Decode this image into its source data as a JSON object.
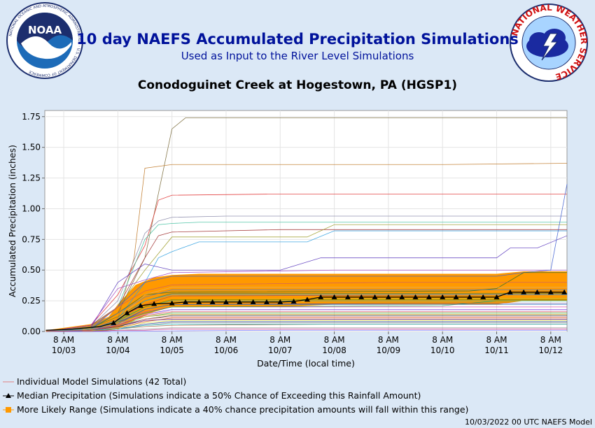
{
  "header": {
    "title": "10 day NAEFS Accumulated Precipitation Simulations",
    "subtitle": "Used as Input to the River Level Simulations",
    "location": "Conodoguinet Creek at Hogestown, PA (HGSP1)"
  },
  "logos": {
    "noaa": "NOAA",
    "noaa_ring": "NATIONAL OCEANIC AND ATMOSPHERIC ADMINISTRATION · U.S. DEPARTMENT OF COMMERCE",
    "nws_ring": "NATIONAL WEATHER SERVICE"
  },
  "legend": {
    "individual": "Individual Model Simulations (42 Total)",
    "median": "Median Precipitation (Simulations indicate a 50% Chance of Exceeding this Rainfall Amount)",
    "range": "More Likely Range (Simulations indicate a 40% chance precipitation amounts will fall within this range)"
  },
  "footer": "10/03/2022 00 UTC NAEFS Model",
  "colors": {
    "title": "#00129b",
    "range_fill": "#ff9900",
    "median": "#000000",
    "background": "#dbe8f6"
  },
  "chart_data": {
    "type": "line",
    "xlabel": "Date/Time (local time)",
    "ylabel": "Accumulated Precipitation (inches)",
    "ylim": [
      0,
      1.8
    ],
    "yticks": [
      "0.00",
      "0.25",
      "0.50",
      "0.75",
      "1.00",
      "1.25",
      "1.50",
      "1.75"
    ],
    "xlim": [
      -0.35,
      9.3
    ],
    "xticks": [
      {
        "x": 0,
        "line1": "8 AM",
        "line2": "10/03"
      },
      {
        "x": 1,
        "line1": "8 AM",
        "line2": "10/04"
      },
      {
        "x": 2,
        "line1": "8 AM",
        "line2": "10/05"
      },
      {
        "x": 3,
        "line1": "8 AM",
        "line2": "10/06"
      },
      {
        "x": 4,
        "line1": "8 AM",
        "line2": "10/07"
      },
      {
        "x": 5,
        "line1": "8 AM",
        "line2": "10/08"
      },
      {
        "x": 6,
        "line1": "8 AM",
        "line2": "10/09"
      },
      {
        "x": 7,
        "line1": "8 AM",
        "line2": "10/10"
      },
      {
        "x": 8,
        "line1": "8 AM",
        "line2": "10/11"
      },
      {
        "x": 9,
        "line1": "8 AM",
        "line2": "10/12"
      }
    ],
    "grid": true,
    "median": {
      "x": [
        -0.33,
        -0.08,
        0.17,
        0.42,
        0.67,
        0.92,
        1.17,
        1.42,
        1.67,
        2.0,
        2.25,
        2.5,
        2.75,
        3.0,
        3.25,
        3.5,
        3.75,
        4.0,
        4.25,
        4.5,
        4.75,
        5.0,
        5.25,
        5.5,
        5.75,
        6.0,
        6.25,
        6.5,
        6.75,
        7.0,
        7.25,
        7.5,
        7.75,
        8.0,
        8.25,
        8.5,
        8.75,
        9.0,
        9.25
      ],
      "y": [
        0.01,
        0.015,
        0.02,
        0.03,
        0.04,
        0.07,
        0.15,
        0.21,
        0.225,
        0.23,
        0.24,
        0.24,
        0.24,
        0.24,
        0.24,
        0.24,
        0.24,
        0.24,
        0.245,
        0.26,
        0.28,
        0.28,
        0.28,
        0.28,
        0.28,
        0.28,
        0.28,
        0.28,
        0.28,
        0.28,
        0.28,
        0.28,
        0.28,
        0.28,
        0.32,
        0.32,
        0.32,
        0.32,
        0.32
      ]
    },
    "likely_range": {
      "x": [
        -0.33,
        0.5,
        0.83,
        1.0,
        1.33,
        1.67,
        2.0,
        2.5,
        3.0,
        4.0,
        5.0,
        6.0,
        7.0,
        8.0,
        8.5,
        9.3
      ],
      "upper": [
        0.01,
        0.06,
        0.12,
        0.22,
        0.38,
        0.44,
        0.46,
        0.47,
        0.47,
        0.47,
        0.47,
        0.47,
        0.47,
        0.47,
        0.49,
        0.49
      ],
      "lower": [
        0.0,
        0.0,
        0.01,
        0.02,
        0.1,
        0.16,
        0.2,
        0.2,
        0.2,
        0.2,
        0.22,
        0.22,
        0.22,
        0.22,
        0.25,
        0.25
      ]
    },
    "simulations": [
      {
        "color": "#7a6a3a",
        "x": [
          -0.33,
          0.5,
          1.0,
          1.5,
          2.0,
          2.25,
          9.3
        ],
        "y": [
          0.0,
          0.03,
          0.15,
          0.6,
          1.65,
          1.74,
          1.74
        ]
      },
      {
        "color": "#c07a2a",
        "x": [
          -0.33,
          0.5,
          1.0,
          1.3,
          1.5,
          2.0,
          7.0,
          9.3
        ],
        "y": [
          0.0,
          0.02,
          0.1,
          0.6,
          1.33,
          1.36,
          1.36,
          1.37
        ]
      },
      {
        "color": "#e03030",
        "x": [
          -0.33,
          0.5,
          1.0,
          1.5,
          1.75,
          2.0,
          4.0,
          9.3
        ],
        "y": [
          0.0,
          0.05,
          0.3,
          0.7,
          1.07,
          1.11,
          1.12,
          1.12
        ]
      },
      {
        "color": "#8a8aaa",
        "x": [
          -0.33,
          0.5,
          1.0,
          1.5,
          1.75,
          2.0,
          3.0,
          9.3
        ],
        "y": [
          0.0,
          0.04,
          0.25,
          0.8,
          0.9,
          0.93,
          0.94,
          0.94
        ]
      },
      {
        "color": "#40c0a0",
        "x": [
          -0.33,
          0.5,
          1.0,
          1.5,
          1.75,
          2.0,
          2.5,
          9.3
        ],
        "y": [
          0.0,
          0.03,
          0.2,
          0.75,
          0.87,
          0.88,
          0.89,
          0.89
        ]
      },
      {
        "color": "#30a0e0",
        "x": [
          -0.33,
          0.5,
          1.0,
          1.5,
          1.75,
          2.0,
          2.5,
          4.5,
          5.0,
          9.3
        ],
        "y": [
          0.0,
          0.02,
          0.1,
          0.4,
          0.6,
          0.65,
          0.73,
          0.73,
          0.82,
          0.82
        ]
      },
      {
        "color": "#a03030",
        "x": [
          -0.33,
          0.5,
          1.0,
          1.5,
          1.75,
          2.0,
          4.0,
          9.3
        ],
        "y": [
          0.0,
          0.05,
          0.2,
          0.6,
          0.78,
          0.81,
          0.83,
          0.83
        ]
      },
      {
        "color": "#a0a030",
        "x": [
          -0.33,
          0.5,
          1.0,
          1.5,
          2.0,
          4.5,
          4.75,
          5.0,
          9.3
        ],
        "y": [
          0.0,
          0.04,
          0.2,
          0.5,
          0.77,
          0.77,
          0.82,
          0.87,
          0.87
        ]
      },
      {
        "color": "#6040c0",
        "x": [
          -0.33,
          0.5,
          1.0,
          1.5,
          2.0,
          4.0,
          4.75,
          8.0,
          8.25,
          8.75,
          9.3
        ],
        "y": [
          0.0,
          0.03,
          0.4,
          0.55,
          0.5,
          0.5,
          0.6,
          0.6,
          0.68,
          0.68,
          0.78
        ]
      },
      {
        "color": "#a040c0",
        "x": [
          -0.33,
          0.5,
          1.0,
          1.5,
          2.0,
          5.0,
          9.3
        ],
        "y": [
          0.0,
          0.05,
          0.35,
          0.42,
          0.48,
          0.5,
          0.5
        ]
      },
      {
        "color": "#4060d0",
        "x": [
          -0.33,
          0.5,
          1.0,
          1.5,
          2.0,
          8.0,
          8.5,
          9.0,
          9.3
        ],
        "y": [
          0.0,
          0.02,
          0.2,
          0.4,
          0.45,
          0.45,
          0.48,
          0.5,
          1.2
        ]
      },
      {
        "color": "#307030",
        "x": [
          -0.33,
          0.5,
          1.0,
          1.5,
          2.0,
          7.5,
          8.0,
          8.5,
          9.3
        ],
        "y": [
          0.0,
          0.02,
          0.15,
          0.3,
          0.32,
          0.33,
          0.35,
          0.48,
          0.48
        ]
      },
      {
        "color": "#d06060",
        "x": [
          -0.33,
          0.5,
          1.0,
          1.5,
          2.0,
          6.0,
          9.3
        ],
        "y": [
          0.0,
          0.03,
          0.2,
          0.33,
          0.38,
          0.4,
          0.4
        ]
      },
      {
        "color": "#e0b060",
        "x": [
          -0.33,
          0.5,
          1.0,
          1.5,
          2.0,
          9.3
        ],
        "y": [
          0.0,
          0.02,
          0.1,
          0.3,
          0.36,
          0.36
        ]
      },
      {
        "color": "#6080b0",
        "x": [
          -0.33,
          0.5,
          1.0,
          1.5,
          2.0,
          9.3
        ],
        "y": [
          0.0,
          0.03,
          0.15,
          0.28,
          0.34,
          0.34
        ]
      },
      {
        "color": "#b0d030",
        "x": [
          -0.33,
          0.5,
          1.0,
          1.5,
          2.0,
          9.3
        ],
        "y": [
          0.0,
          0.02,
          0.1,
          0.2,
          0.26,
          0.27
        ]
      },
      {
        "color": "#30b0b0",
        "x": [
          -0.33,
          0.5,
          1.0,
          1.5,
          2.0,
          9.3
        ],
        "y": [
          0.0,
          0.01,
          0.08,
          0.2,
          0.25,
          0.25
        ]
      },
      {
        "color": "#d040a0",
        "x": [
          -0.33,
          0.5,
          1.0,
          1.5,
          2.0,
          9.3
        ],
        "y": [
          0.0,
          0.02,
          0.08,
          0.16,
          0.2,
          0.2
        ]
      },
      {
        "color": "#8040e0",
        "x": [
          -0.33,
          0.5,
          1.0,
          1.5,
          2.0,
          9.3
        ],
        "y": [
          0.0,
          0.02,
          0.05,
          0.14,
          0.18,
          0.18
        ]
      },
      {
        "color": "#50c050",
        "x": [
          -0.33,
          0.5,
          1.0,
          1.5,
          2.0,
          9.3
        ],
        "y": [
          0.0,
          0.01,
          0.04,
          0.12,
          0.15,
          0.15
        ]
      },
      {
        "color": "#404040",
        "x": [
          -0.33,
          0.5,
          1.0,
          1.5,
          2.0,
          9.3
        ],
        "y": [
          0.0,
          0.01,
          0.04,
          0.1,
          0.13,
          0.13
        ]
      },
      {
        "color": "#e06020",
        "x": [
          -0.33,
          0.5,
          1.0,
          1.5,
          2.0,
          9.3
        ],
        "y": [
          0.0,
          0.01,
          0.03,
          0.08,
          0.11,
          0.11
        ]
      },
      {
        "color": "#2040a0",
        "x": [
          -0.33,
          0.5,
          1.0,
          1.5,
          2.0,
          9.3
        ],
        "y": [
          0.0,
          0.01,
          0.02,
          0.06,
          0.08,
          0.08
        ]
      },
      {
        "color": "#a06040",
        "x": [
          -0.33,
          0.5,
          1.0,
          1.5,
          2.0,
          5.0,
          9.3
        ],
        "y": [
          0.0,
          0.0,
          0.02,
          0.04,
          0.05,
          0.06,
          0.06
        ]
      },
      {
        "color": "#909090",
        "x": [
          -0.33,
          0.5,
          1.0,
          1.5,
          2.0,
          9.3
        ],
        "y": [
          0.0,
          0.0,
          0.01,
          0.02,
          0.03,
          0.03
        ]
      },
      {
        "color": "#c02080",
        "x": [
          -0.33,
          0.5,
          1.0,
          1.5,
          2.0,
          4.0,
          9.3
        ],
        "y": [
          0.0,
          0.0,
          0.01,
          0.01,
          0.02,
          0.02,
          0.02
        ]
      },
      {
        "color": "#7070ff",
        "x": [
          -0.33,
          1.0,
          2.0,
          4.0,
          9.3
        ],
        "y": [
          0.0,
          0.0,
          0.005,
          0.01,
          0.01
        ]
      },
      {
        "color": "#20a060",
        "x": [
          -0.33,
          0.5,
          1.0,
          1.5,
          2.0,
          7.0,
          8.0,
          9.3
        ],
        "y": [
          0.0,
          0.02,
          0.08,
          0.15,
          0.2,
          0.21,
          0.25,
          0.25
        ]
      },
      {
        "color": "#b05050",
        "x": [
          -0.33,
          0.5,
          1.0,
          1.5,
          2.0,
          9.3
        ],
        "y": [
          0.0,
          0.02,
          0.1,
          0.22,
          0.29,
          0.3
        ]
      },
      {
        "color": "#508050",
        "x": [
          -0.33,
          0.5,
          1.0,
          1.5,
          2.0,
          9.3
        ],
        "y": [
          0.0,
          0.03,
          0.12,
          0.25,
          0.31,
          0.31
        ]
      },
      {
        "color": "#c0a0e0",
        "x": [
          -0.33,
          0.5,
          1.0,
          1.5,
          2.0,
          9.3
        ],
        "y": [
          0.0,
          0.01,
          0.06,
          0.14,
          0.17,
          0.17
        ]
      },
      {
        "color": "#e0e040",
        "x": [
          -0.33,
          0.5,
          1.0,
          1.5,
          2.0,
          9.3
        ],
        "y": [
          0.0,
          0.01,
          0.03,
          0.07,
          0.09,
          0.09
        ]
      },
      {
        "color": "#5050a0",
        "x": [
          -0.33,
          0.5,
          1.0,
          1.5,
          2.0,
          6.5,
          9.3
        ],
        "y": [
          0.0,
          0.02,
          0.07,
          0.18,
          0.22,
          0.23,
          0.23
        ]
      },
      {
        "color": "#e08080",
        "x": [
          -0.33,
          0.5,
          1.0,
          1.5,
          2.0,
          9.3
        ],
        "y": [
          0.0,
          0.02,
          0.05,
          0.1,
          0.12,
          0.12
        ]
      },
      {
        "color": "#3070c0",
        "x": [
          -0.33,
          0.5,
          1.0,
          1.5,
          2.0,
          9.3
        ],
        "y": [
          0.0,
          0.01,
          0.06,
          0.18,
          0.22,
          0.22
        ]
      },
      {
        "color": "#808000",
        "x": [
          -0.33,
          0.5,
          1.0,
          1.5,
          2.0,
          9.3
        ],
        "y": [
          0.0,
          0.02,
          0.09,
          0.2,
          0.26,
          0.26
        ]
      },
      {
        "color": "#d0a030",
        "x": [
          -0.33,
          0.5,
          1.0,
          1.5,
          2.0,
          9.3
        ],
        "y": [
          0.0,
          0.02,
          0.07,
          0.12,
          0.14,
          0.14
        ]
      },
      {
        "color": "#40a0d0",
        "x": [
          -0.33,
          0.5,
          1.0,
          1.5,
          2.0,
          9.3
        ],
        "y": [
          0.0,
          0.02,
          0.09,
          0.25,
          0.3,
          0.3
        ]
      },
      {
        "color": "#a0a0a0",
        "x": [
          -0.33,
          0.5,
          1.0,
          1.5,
          2.0,
          9.3
        ],
        "y": [
          0.0,
          0.01,
          0.03,
          0.05,
          0.07,
          0.07
        ]
      },
      {
        "color": "#602080",
        "x": [
          -0.33,
          0.5,
          1.0,
          1.5,
          2.0,
          9.3
        ],
        "y": [
          0.0,
          0.01,
          0.04,
          0.09,
          0.1,
          0.1
        ]
      },
      {
        "color": "#20c0c0",
        "x": [
          -0.33,
          0.5,
          1.0,
          1.5,
          2.0,
          9.3
        ],
        "y": [
          0.0,
          0.01,
          0.02,
          0.05,
          0.06,
          0.06
        ]
      },
      {
        "color": "#e04040",
        "x": [
          -0.33,
          0.5,
          1.0,
          1.5,
          2.0,
          9.3
        ],
        "y": [
          0.0,
          0.01,
          0.05,
          0.13,
          0.16,
          0.16
        ]
      }
    ]
  }
}
